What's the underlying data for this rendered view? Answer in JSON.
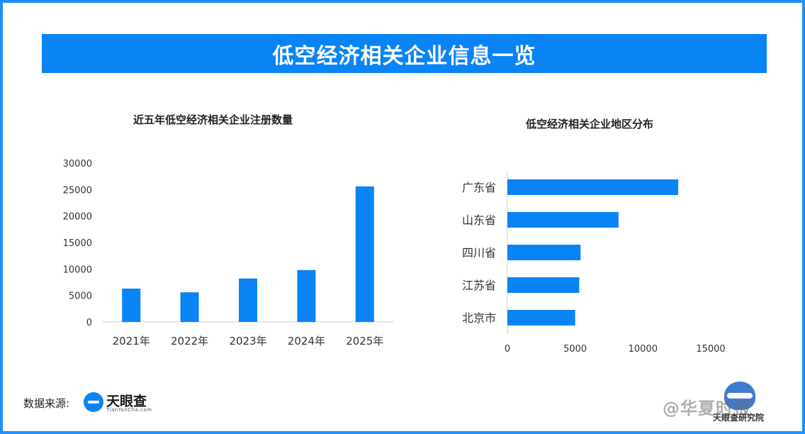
{
  "header": {
    "title": "低空经济相关企业信息一览"
  },
  "chart_data": [
    {
      "type": "bar",
      "title": "近五年低空经济相关企业注册数量",
      "categories": [
        "2021年",
        "2022年",
        "2023年",
        "2024年",
        "2025年"
      ],
      "values": [
        6300,
        5600,
        8200,
        9800,
        25600
      ],
      "ylim": [
        0,
        30000
      ],
      "yticks": [
        "30000",
        "25000",
        "20000",
        "15000",
        "10000",
        "5000",
        "0"
      ],
      "xlabel": "",
      "ylabel": "",
      "grid": false,
      "color": "#0a84f5"
    },
    {
      "type": "bar",
      "orientation": "horizontal",
      "title": "低空经济相关企业地区分布",
      "categories": [
        "广东省",
        "山东省",
        "四川省",
        "江苏省",
        "北京市"
      ],
      "values": [
        12600,
        8200,
        5400,
        5300,
        5000
      ],
      "xlim": [
        0,
        17500
      ],
      "xticks": [
        "0",
        "5000",
        "10000",
        "15000"
      ],
      "xlabel": "",
      "ylabel": "",
      "grid": false,
      "color": "#0a84f5"
    }
  ],
  "footer": {
    "source_label": "数据来源:",
    "source_logo_name": "天眼查",
    "source_logo_sub": "TianYanCha.com",
    "watermark_text": "@华夏时报",
    "watermark_sub": "天眼查研究院"
  }
}
